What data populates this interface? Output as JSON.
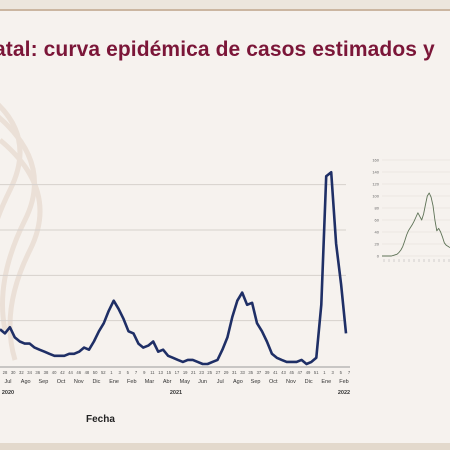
{
  "slide": {
    "title": "atal: curva epidémica de casos estimados y"
  },
  "chart_data": [
    {
      "type": "line",
      "xlabel": "Fecha",
      "month_ticks": [
        "Jul",
        "Ago",
        "Sep",
        "Oct",
        "Nov",
        "Dic",
        "Ene",
        "Feb",
        "Mar",
        "Abr",
        "May",
        "Jun",
        "Jul",
        "Ago",
        "Sep",
        "Oct",
        "Nov",
        "Dic",
        "Ene",
        "Feb"
      ],
      "week_ticks": [
        "28",
        "30",
        "32",
        "34",
        "36",
        "38",
        "40",
        "42",
        "44",
        "46",
        "48",
        "50",
        "52",
        "1",
        "3",
        "5",
        "7",
        "9",
        "11",
        "13",
        "15",
        "17",
        "19",
        "21",
        "23",
        "25",
        "27",
        "29",
        "31",
        "33",
        "35",
        "37",
        "39",
        "41",
        "43",
        "45",
        "47",
        "49",
        "51",
        "1",
        "3",
        "5",
        "7"
      ],
      "year_labels": [
        {
          "label": "2020",
          "at_week_index": 0
        },
        {
          "label": "2021",
          "at_week_index": 26
        },
        {
          "label": "2022",
          "at_week_index": 52
        }
      ],
      "series": [
        {
          "color": "#1f2f66",
          "values": [
            18,
            16,
            19,
            14,
            12,
            11,
            11,
            9,
            8,
            7,
            6,
            5,
            5,
            5,
            6,
            6,
            7,
            9,
            8,
            12,
            17,
            21,
            27,
            32,
            28,
            23,
            17,
            16,
            11,
            9,
            10,
            12,
            7,
            8,
            5,
            4,
            3,
            2,
            3,
            3,
            2,
            1,
            1,
            2,
            3,
            8,
            14,
            24,
            32,
            36,
            30,
            31,
            21,
            17,
            12,
            6,
            4,
            3,
            2,
            2,
            2,
            3,
            1,
            2,
            4,
            30,
            93,
            95,
            60,
            40,
            16
          ]
        }
      ]
    },
    {
      "type": "line",
      "ylim": [
        0,
        160
      ],
      "y_ticks": [
        "160",
        "140",
        "120",
        "100",
        "80",
        "60",
        "40",
        "20",
        "0"
      ],
      "series": [
        {
          "color": "#5e7256",
          "values": [
            0,
            0,
            0,
            0,
            0,
            0,
            1,
            2,
            3,
            6,
            10,
            16,
            25,
            35,
            42,
            47,
            52,
            58,
            65,
            72,
            66,
            60,
            70,
            85,
            100,
            105,
            98,
            84,
            60,
            42,
            46,
            40,
            32,
            22,
            18,
            16,
            14
          ]
        }
      ]
    }
  ]
}
